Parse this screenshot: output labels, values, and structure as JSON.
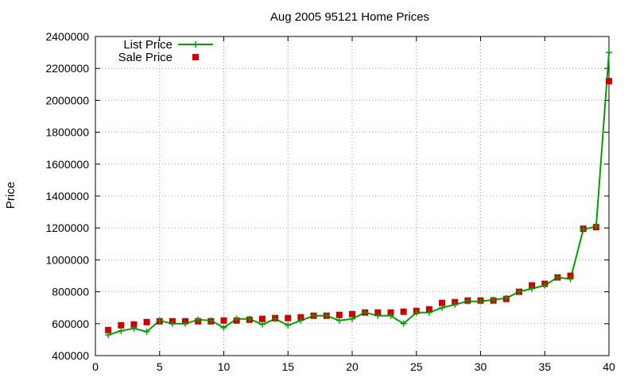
{
  "chart_data": {
    "type": "line",
    "title": "Aug 2005 95121 Home Prices",
    "ylabel": "Price",
    "xlabel": "",
    "xlim": [
      0,
      40
    ],
    "ylim": [
      400000,
      2400000
    ],
    "xticks": [
      0,
      5,
      10,
      15,
      20,
      25,
      30,
      35,
      40
    ],
    "yticks": [
      400000,
      600000,
      800000,
      1000000,
      1200000,
      1400000,
      1600000,
      1800000,
      2000000,
      2200000,
      2400000
    ],
    "grid": true,
    "legend_position": "top-left",
    "x": [
      1,
      2,
      3,
      4,
      5,
      6,
      7,
      8,
      9,
      10,
      11,
      12,
      13,
      14,
      15,
      16,
      17,
      18,
      19,
      20,
      21,
      22,
      23,
      24,
      25,
      26,
      27,
      28,
      29,
      30,
      31,
      32,
      33,
      34,
      35,
      36,
      37,
      38,
      39,
      40
    ],
    "series": [
      {
        "name": "List Price",
        "style": "lines+cross",
        "color": "#00a000",
        "values": [
          530000,
          555000,
          570000,
          550000,
          620000,
          600000,
          600000,
          625000,
          620000,
          575000,
          630000,
          630000,
          595000,
          630000,
          590000,
          620000,
          650000,
          650000,
          620000,
          630000,
          670000,
          650000,
          650000,
          600000,
          670000,
          670000,
          700000,
          720000,
          740000,
          740000,
          750000,
          760000,
          800000,
          820000,
          840000,
          890000,
          880000,
          1190000,
          1210000,
          2300000
        ]
      },
      {
        "name": "Sale Price",
        "style": "square",
        "color": "#cc0000",
        "values": [
          560000,
          590000,
          595000,
          610000,
          615000,
          615000,
          615000,
          615000,
          615000,
          620000,
          620000,
          625000,
          630000,
          635000,
          635000,
          640000,
          650000,
          650000,
          655000,
          660000,
          670000,
          670000,
          670000,
          675000,
          680000,
          690000,
          730000,
          735000,
          745000,
          745000,
          745000,
          755000,
          800000,
          840000,
          850000,
          890000,
          900000,
          1195000,
          1205000,
          2120000
        ]
      }
    ]
  }
}
